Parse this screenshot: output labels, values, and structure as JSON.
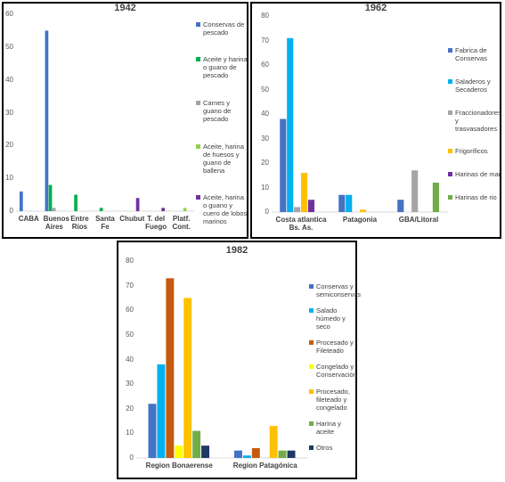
{
  "chart_data": [
    {
      "type": "bar",
      "title": "1942",
      "categories": [
        "CABA",
        "Buenos Aires",
        "Entre Ríos",
        "Santa Fe",
        "Chubut",
        "T. del Fuego",
        "Platf. Cont."
      ],
      "series": [
        {
          "name": "Conservas de pescado",
          "color": "#4472c4",
          "values": [
            6,
            55,
            null,
            null,
            null,
            null,
            null
          ]
        },
        {
          "name": "Aceite y harina o guano de pescado",
          "color": "#00b050",
          "values": [
            null,
            8,
            5,
            1,
            null,
            null,
            null
          ]
        },
        {
          "name": "Carnes y guano de pescado",
          "color": "#a5a5a5",
          "values": [
            null,
            1,
            null,
            null,
            null,
            null,
            null
          ]
        },
        {
          "name": "Aceite, harina de huesos y guano de ballena",
          "color": "#92d050",
          "values": [
            null,
            null,
            null,
            null,
            null,
            null,
            1
          ]
        },
        {
          "name": "Aceite, harina o guano y cuero de lobos marinos",
          "color": "#7030a0",
          "values": [
            null,
            null,
            null,
            null,
            4,
            1,
            null
          ]
        }
      ],
      "ylim": [
        0,
        60
      ],
      "yticks": [
        0,
        10,
        20,
        30,
        40,
        50,
        60
      ]
    },
    {
      "type": "bar",
      "title": "1962",
      "categories": [
        "Costa atlantica Bs. As.",
        "Patagonia",
        "GBA/Litoral"
      ],
      "series": [
        {
          "name": "Fabrica de Conservas",
          "color": "#4472c4",
          "values": [
            38,
            7,
            5
          ]
        },
        {
          "name": "Saladeros y Secaderos",
          "color": "#00b0f0",
          "values": [
            71,
            7,
            null
          ]
        },
        {
          "name": "Fraccionadores y trasvasadores",
          "color": "#a5a5a5",
          "values": [
            2,
            null,
            17
          ]
        },
        {
          "name": "Frigorificos",
          "color": "#ffc000",
          "values": [
            16,
            1,
            null
          ]
        },
        {
          "name": "Harinas de mar",
          "color": "#7030a0",
          "values": [
            5,
            null,
            null
          ]
        },
        {
          "name": "Harinas de rio",
          "color": "#70ad47",
          "values": [
            null,
            null,
            12
          ]
        }
      ],
      "ylim": [
        0,
        80
      ],
      "yticks": [
        0,
        10,
        20,
        30,
        40,
        50,
        60,
        70,
        80
      ]
    },
    {
      "type": "bar",
      "title": "1982",
      "categories": [
        "Region Bonaerense",
        "Region Patagónica"
      ],
      "series": [
        {
          "name": "Conservas y semiconservas",
          "color": "#4472c4",
          "values": [
            22,
            3
          ]
        },
        {
          "name": "Salado húmedo y seco",
          "color": "#00b0f0",
          "values": [
            38,
            1
          ]
        },
        {
          "name": "Procesado y Fileteado",
          "color": "#c55a11",
          "values": [
            73,
            4
          ]
        },
        {
          "name": "Congelado y Conservación",
          "color": "#ffff00",
          "values": [
            5,
            null
          ]
        },
        {
          "name": "Procesado, fileteado y congelado",
          "color": "#ffc000",
          "values": [
            65,
            13
          ]
        },
        {
          "name": "Harina y aceite",
          "color": "#70ad47",
          "values": [
            11,
            3
          ]
        },
        {
          "name": "Otros",
          "color": "#203864",
          "values": [
            5,
            3
          ]
        }
      ],
      "ylim": [
        0,
        80
      ],
      "yticks": [
        0,
        10,
        20,
        30,
        40,
        50,
        60,
        70,
        80
      ]
    }
  ]
}
